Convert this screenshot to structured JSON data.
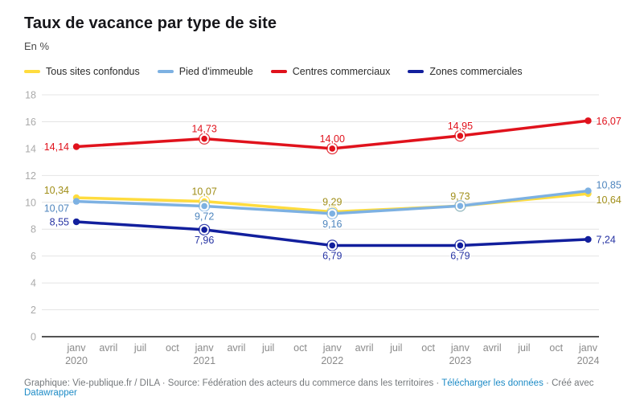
{
  "title": "Taux de vacance par type de site",
  "subtitle": "En %",
  "footer": {
    "prefix": "Graphique: Vie-publique.fr / DILA · Source: Fédération des acteurs du commerce dans les territoires · ",
    "download_label": "Télécharger les données",
    "middle": " · Créé avec ",
    "created_with": "Datawrapper",
    "link_color": "#1D8BC6"
  },
  "chart_data": {
    "type": "line",
    "title": "Taux de vacance par type de site",
    "ylabel": "En %",
    "ylim": [
      0,
      18
    ],
    "y_ticks": [
      0,
      2,
      4,
      6,
      8,
      10,
      12,
      14,
      16,
      18
    ],
    "grid": "horizontal",
    "legend_position": "top",
    "x_tick_labels": [
      {
        "month": "janv",
        "year": "2020"
      },
      {
        "month": "avril"
      },
      {
        "month": "juil"
      },
      {
        "month": "oct"
      },
      {
        "month": "janv",
        "year": "2021"
      },
      {
        "month": "avril"
      },
      {
        "month": "juil"
      },
      {
        "month": "oct"
      },
      {
        "month": "janv",
        "year": "2022"
      },
      {
        "month": "avril"
      },
      {
        "month": "juil"
      },
      {
        "month": "oct"
      },
      {
        "month": "janv",
        "year": "2023"
      },
      {
        "month": "avril"
      },
      {
        "month": "juil"
      },
      {
        "month": "oct"
      },
      {
        "month": "janv",
        "year": "2024"
      }
    ],
    "data_point_tick_indices": [
      0,
      4,
      8,
      12,
      16
    ],
    "series": [
      {
        "name": "Tous sites confondus",
        "color": "#FFDC3E",
        "label_color": "#A08E18",
        "values": [
          10.34,
          10.07,
          9.29,
          9.73,
          10.64
        ],
        "labels": [
          "10,34",
          "10,07",
          "9,29",
          "9,73",
          "10,64"
        ],
        "placements": [
          "left-up",
          "above",
          "above",
          "above",
          "right-down"
        ]
      },
      {
        "name": "Pied d'immeuble",
        "color": "#7DB1E2",
        "label_color": "#4F86BE",
        "values": [
          10.07,
          9.72,
          9.16,
          9.73,
          10.85
        ],
        "labels": [
          "10,07",
          "9,72",
          "9,16",
          null,
          "10,85"
        ],
        "placements": [
          "left-down",
          "below",
          "below",
          null,
          "right-up"
        ]
      },
      {
        "name": "Centres commerciaux",
        "color": "#E0121C",
        "label_color": "#E0121C",
        "values": [
          14.14,
          14.73,
          14.0,
          14.95,
          16.07
        ],
        "labels": [
          "14,14",
          "14,73",
          "14,00",
          "14,95",
          "16,07"
        ],
        "placements": [
          "left",
          "above",
          "above",
          "above",
          "right"
        ]
      },
      {
        "name": "Zones commerciales",
        "color": "#121F9D",
        "label_color": "#2633A3",
        "values": [
          8.55,
          7.96,
          6.79,
          6.79,
          7.24
        ],
        "labels": [
          "8,55",
          "7,96",
          "6,79",
          "6,79",
          "7,24"
        ],
        "placements": [
          "left",
          "below",
          "below",
          "below",
          "right"
        ]
      }
    ],
    "colors": {
      "grid": "#E4E4E4",
      "zero_line": "#1A1A1A",
      "y_tick_label": "#AAAAAA",
      "x_tick_label": "#8A8A8A"
    }
  }
}
